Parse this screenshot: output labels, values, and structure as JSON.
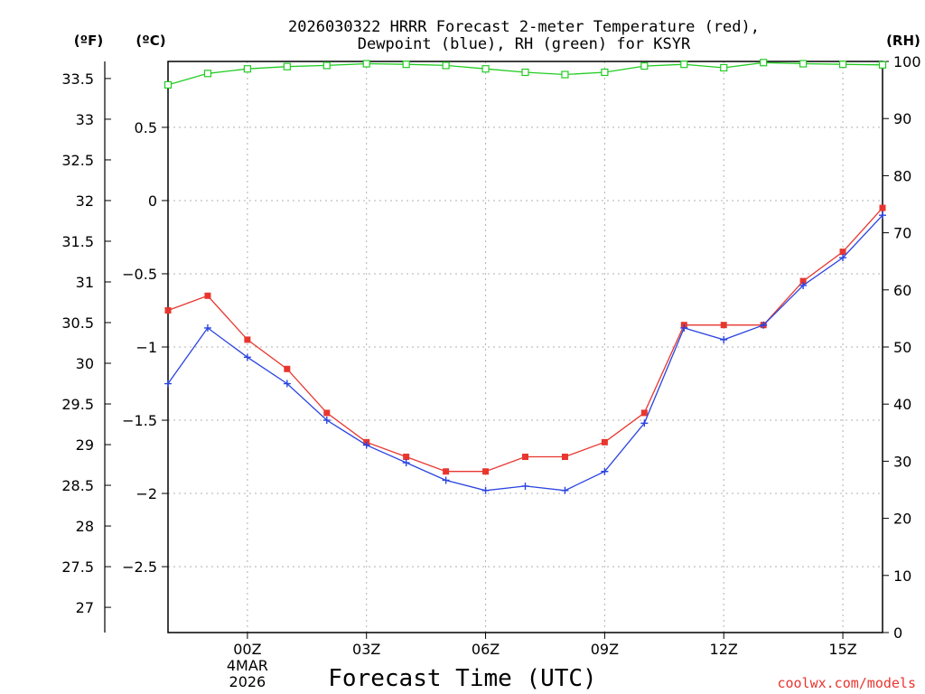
{
  "chart_data": {
    "type": "line",
    "title_line1": "2026030322 HRRR Forecast 2-meter Temperature (red),",
    "title_line2": "Dewpoint (blue), RH (green) for KSYR",
    "xlabel": "Forecast Time (UTC)",
    "unit_labels": {
      "fahrenheit": "(ºF)",
      "celsius": "(ºC)",
      "rh": "(RH)"
    },
    "credit": "coolwx.com/models",
    "x_hours": [
      -2,
      -1,
      0,
      1,
      2,
      3,
      4,
      5,
      6,
      7,
      8,
      9,
      10,
      11,
      12,
      13,
      14,
      15,
      16
    ],
    "xlim": [
      -2,
      16
    ],
    "x_ticks": [
      {
        "hour": 0,
        "label": "00Z",
        "sub1": "4MAR",
        "sub2": "2026"
      },
      {
        "hour": 3,
        "label": "03Z"
      },
      {
        "hour": 6,
        "label": "06Z"
      },
      {
        "hour": 9,
        "label": "09Z"
      },
      {
        "hour": 12,
        "label": "12Z"
      },
      {
        "hour": 15,
        "label": "15Z"
      }
    ],
    "celsius_range": [
      -2.95,
      0.95
    ],
    "celsius_ticks": [
      {
        "value": 0.5,
        "label": "0.5"
      },
      {
        "value": 0,
        "label": "0"
      },
      {
        "value": -0.5,
        "label": "−0.5"
      },
      {
        "value": -1,
        "label": "−1"
      },
      {
        "value": -1.5,
        "label": "−1.5"
      },
      {
        "value": -2,
        "label": "−2"
      },
      {
        "value": -2.5,
        "label": "−2.5"
      }
    ],
    "fahrenheit_ticks": [
      {
        "value": 33.5,
        "label": "33.5"
      },
      {
        "value": 33,
        "label": "33"
      },
      {
        "value": 32.5,
        "label": "32.5"
      },
      {
        "value": 32,
        "label": "32"
      },
      {
        "value": 31.5,
        "label": "31.5"
      },
      {
        "value": 31,
        "label": "31"
      },
      {
        "value": 30.5,
        "label": "30.5"
      },
      {
        "value": 30,
        "label": "30"
      },
      {
        "value": 29.5,
        "label": "29.5"
      },
      {
        "value": 29,
        "label": "29"
      },
      {
        "value": 28.5,
        "label": "28.5"
      },
      {
        "value": 28,
        "label": "28"
      },
      {
        "value": 27.5,
        "label": "27.5"
      },
      {
        "value": 27,
        "label": "27"
      }
    ],
    "rh_range": [
      0,
      100
    ],
    "rh_ticks": [
      {
        "value": 100,
        "label": "100"
      },
      {
        "value": 90,
        "label": "90"
      },
      {
        "value": 80,
        "label": "80"
      },
      {
        "value": 70,
        "label": "70"
      },
      {
        "value": 60,
        "label": "60"
      },
      {
        "value": 50,
        "label": "50"
      },
      {
        "value": 40,
        "label": "40"
      },
      {
        "value": 30,
        "label": "30"
      },
      {
        "value": 20,
        "label": "20"
      },
      {
        "value": 10,
        "label": "10"
      },
      {
        "value": 0,
        "label": "0"
      }
    ],
    "series": [
      {
        "name": "Temperature",
        "axis": "celsius",
        "color": "#e8362f",
        "marker": "filled-square",
        "values": [
          -0.75,
          -0.65,
          -0.95,
          -1.15,
          -1.45,
          -1.65,
          -1.75,
          -1.85,
          -1.85,
          -1.75,
          -1.75,
          -1.65,
          -1.45,
          -0.85,
          -0.85,
          -0.85,
          -0.55,
          -0.35,
          -0.05
        ]
      },
      {
        "name": "Dewpoint",
        "axis": "celsius",
        "color": "#2a44e0",
        "marker": "plus",
        "values": [
          -1.25,
          -0.87,
          -1.07,
          -1.25,
          -1.5,
          -1.67,
          -1.79,
          -1.91,
          -1.98,
          -1.95,
          -1.98,
          -1.85,
          -1.52,
          -0.87,
          -0.95,
          -0.85,
          -0.58,
          -0.39,
          -0.1
        ]
      },
      {
        "name": "RH",
        "axis": "rh",
        "color": "#22cc22",
        "marker": "open-square",
        "values": [
          95.9,
          97.9,
          98.7,
          99.1,
          99.3,
          99.6,
          99.5,
          99.3,
          98.7,
          98.1,
          97.7,
          98.1,
          99.2,
          99.5,
          98.9,
          99.8,
          99.6,
          99.5,
          99.4
        ]
      }
    ]
  }
}
